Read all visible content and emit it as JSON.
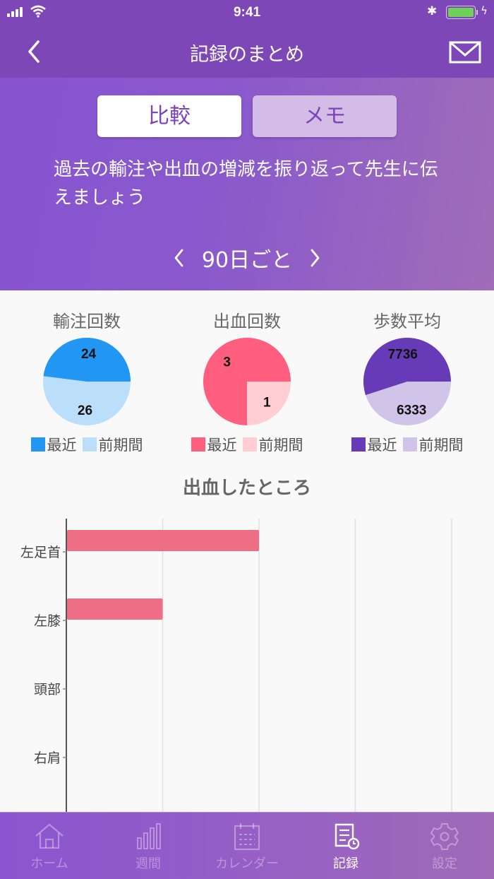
{
  "status_bar": {
    "time": "9:41",
    "battery_color": "#6dd15a"
  },
  "nav": {
    "title": "記録のまとめ",
    "back_icon": "chevron-left-icon",
    "mail_icon": "mail-icon"
  },
  "segments": {
    "compare_label": "比較",
    "memo_label": "メモ",
    "selected": "compare"
  },
  "description": "過去の輸注や出血の増減を振り返って先生に伝えましょう",
  "period": {
    "label": "90日ごと",
    "prev_icon": "chevron-left-icon",
    "next_icon": "chevron-right-icon"
  },
  "pies": [
    {
      "title": "輸注回数",
      "recent": 24,
      "previous": 26,
      "recent_label": "最近",
      "previous_label": "前期間",
      "recent_color": "#2196f3",
      "previous_color": "#bbdefb"
    },
    {
      "title": "出血回数",
      "recent": 3,
      "previous": 1,
      "recent_label": "最近",
      "previous_label": "前期間",
      "recent_color": "#ff5e7e",
      "previous_color": "#ffcdd2"
    },
    {
      "title": "歩数平均",
      "recent": 7736,
      "previous": 6333,
      "recent_label": "最近",
      "previous_label": "前期間",
      "recent_color": "#673ab7",
      "previous_color": "#d1c4e9"
    }
  ],
  "bar_chart": {
    "title": "出血したところ",
    "bar_color": "#ee6e85",
    "categories": [
      "左足首",
      "左膝",
      "頭部",
      "右肩"
    ],
    "values": [
      2,
      1,
      0,
      0
    ],
    "xmax": 4
  },
  "chart_data": [
    {
      "type": "pie",
      "title": "輸注回数",
      "labels": [
        "最近",
        "前期間"
      ],
      "values": [
        24,
        26
      ],
      "colors": [
        "#2196f3",
        "#bbdefb"
      ]
    },
    {
      "type": "pie",
      "title": "出血回数",
      "labels": [
        "最近",
        "前期間"
      ],
      "values": [
        3,
        1
      ],
      "colors": [
        "#ff5e7e",
        "#ffcdd2"
      ]
    },
    {
      "type": "pie",
      "title": "歩数平均",
      "labels": [
        "最近",
        "前期間"
      ],
      "values": [
        7736,
        6333
      ],
      "colors": [
        "#673ab7",
        "#d1c4e9"
      ]
    },
    {
      "type": "bar",
      "orientation": "horizontal",
      "title": "出血したところ",
      "categories": [
        "左足首",
        "左膝",
        "頭部",
        "右肩"
      ],
      "values": [
        2,
        1,
        0,
        0
      ],
      "xlim": [
        0,
        4
      ],
      "grid": true,
      "xlabel": "",
      "ylabel": ""
    }
  ],
  "tabs": [
    {
      "label": "ホーム",
      "icon": "home-icon",
      "active": false
    },
    {
      "label": "週間",
      "icon": "bar-chart-icon",
      "active": false
    },
    {
      "label": "カレンダー",
      "icon": "calendar-icon",
      "active": false
    },
    {
      "label": "記録",
      "icon": "record-clock-icon",
      "active": true
    },
    {
      "label": "設定",
      "icon": "gear-icon",
      "active": false
    }
  ]
}
